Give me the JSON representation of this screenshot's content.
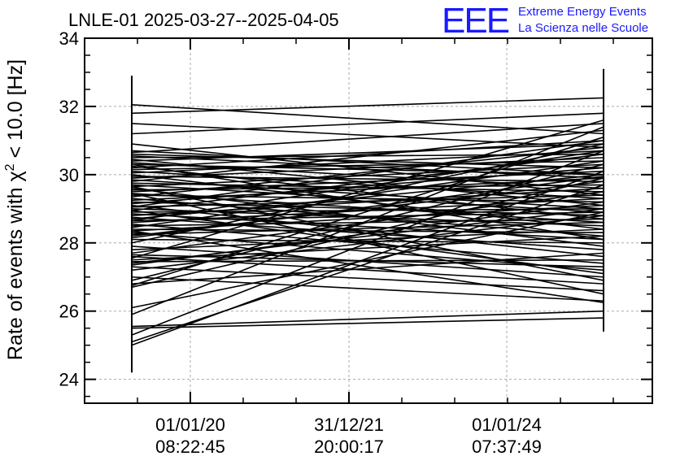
{
  "chart_data": {
    "type": "line",
    "title": "LNLE-01 2025-03-27--2025-04-05",
    "logo": {
      "text": "EEE",
      "line1": "Extreme Energy Events",
      "line2": "La Scienza nelle Scuole"
    },
    "ylabel_prefix": "Rate of events with χ",
    "ylabel_sup": "2",
    "ylabel_suffix": " < 10.0 [Hz]",
    "ylim": [
      23.3,
      34
    ],
    "yticks": [
      24,
      26,
      28,
      30,
      32,
      34
    ],
    "xtick_labels": [
      {
        "date": "01/01/20",
        "time": "08:22:45"
      },
      {
        "date": "31/12/21",
        "time": "20:00:17"
      },
      {
        "date": "01/01/24",
        "time": "07:37:49"
      }
    ],
    "grid": true,
    "errorbars": [
      {
        "label": "start",
        "low": 24.2,
        "high": 32.9
      },
      {
        "label": "end",
        "low": 25.4,
        "high": 33.1
      }
    ],
    "segments": [
      [
        32.05,
        31.2
      ],
      [
        31.8,
        32.25
      ],
      [
        31.5,
        30.8
      ],
      [
        30.65,
        31.5
      ],
      [
        30.6,
        30.2
      ],
      [
        30.55,
        29.9
      ],
      [
        30.5,
        30.6
      ],
      [
        30.45,
        29.1
      ],
      [
        30.4,
        30.9
      ],
      [
        30.35,
        29.6
      ],
      [
        30.3,
        30.0
      ],
      [
        30.25,
        28.7
      ],
      [
        30.2,
        31.0
      ],
      [
        30.15,
        30.4
      ],
      [
        30.1,
        29.3
      ],
      [
        30.05,
        30.7
      ],
      [
        30.0,
        28.4
      ],
      [
        29.95,
        29.8
      ],
      [
        29.9,
        30.5
      ],
      [
        29.85,
        29.0
      ],
      [
        29.8,
        31.3
      ],
      [
        29.75,
        29.5
      ],
      [
        29.7,
        28.9
      ],
      [
        29.65,
        30.3
      ],
      [
        29.6,
        27.9
      ],
      [
        29.55,
        29.7
      ],
      [
        29.5,
        30.1
      ],
      [
        29.45,
        28.6
      ],
      [
        29.4,
        29.2
      ],
      [
        29.35,
        30.8
      ],
      [
        29.3,
        28.2
      ],
      [
        29.25,
        29.9
      ],
      [
        29.2,
        28.8
      ],
      [
        29.15,
        30.2
      ],
      [
        29.1,
        27.6
      ],
      [
        29.05,
        29.4
      ],
      [
        29.0,
        28.5
      ],
      [
        28.95,
        30.6
      ],
      [
        28.9,
        29.0
      ],
      [
        28.85,
        28.1
      ],
      [
        28.8,
        29.6
      ],
      [
        28.75,
        27.8
      ],
      [
        28.7,
        30.0
      ],
      [
        28.65,
        28.9
      ],
      [
        28.6,
        29.3
      ],
      [
        28.55,
        27.4
      ],
      [
        28.5,
        28.7
      ],
      [
        28.45,
        30.4
      ],
      [
        28.4,
        28.3
      ],
      [
        28.35,
        29.1
      ],
      [
        28.3,
        27.2
      ],
      [
        28.25,
        28.6
      ],
      [
        28.2,
        29.8
      ],
      [
        28.1,
        28.0
      ],
      [
        28.0,
        30.9
      ],
      [
        27.9,
        27.0
      ],
      [
        27.8,
        28.4
      ],
      [
        27.7,
        29.5
      ],
      [
        27.6,
        26.8
      ],
      [
        27.55,
        31.6
      ],
      [
        27.5,
        28.2
      ],
      [
        27.45,
        27.5
      ],
      [
        27.4,
        29.0
      ],
      [
        27.3,
        26.6
      ],
      [
        27.2,
        28.8
      ],
      [
        27.0,
        26.3
      ],
      [
        26.9,
        30.3
      ],
      [
        26.8,
        27.7
      ],
      [
        26.75,
        31.1
      ],
      [
        26.7,
        29.9
      ],
      [
        26.1,
        28.9
      ],
      [
        25.9,
        31.4
      ],
      [
        25.55,
        26.0
      ],
      [
        25.5,
        25.8
      ],
      [
        25.3,
        30.7
      ],
      [
        25.1,
        29.7
      ],
      [
        25.0,
        30.1
      ],
      [
        31.2,
        31.8
      ],
      [
        30.9,
        29.4
      ],
      [
        30.7,
        30.0
      ],
      [
        29.45,
        26.5
      ],
      [
        28.35,
        26.25
      ],
      [
        27.65,
        27.3
      ],
      [
        28.95,
        27.1
      ],
      [
        29.65,
        26.9
      ],
      [
        30.3,
        28.1
      ],
      [
        28.65,
        30.7
      ],
      [
        27.35,
        29.2
      ],
      [
        29.05,
        31.0
      ],
      [
        28.15,
        29.95
      ]
    ]
  }
}
